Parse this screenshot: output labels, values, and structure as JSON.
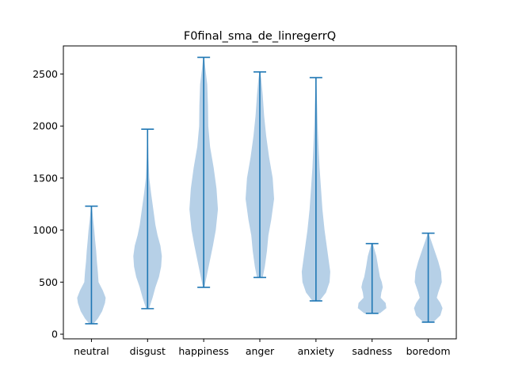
{
  "chart_data": {
    "type": "violin",
    "title": "F0final_sma_de_linregerrQ",
    "xlabel": "",
    "ylabel": "",
    "categories": [
      "neutral",
      "disgust",
      "happiness",
      "anger",
      "anxiety",
      "sadness",
      "boredom"
    ],
    "ylim": [
      -45,
      2770
    ],
    "yticks": [
      0,
      500,
      1000,
      1500,
      2000,
      2500
    ],
    "ytick_labels": [
      "0",
      "500",
      "1000",
      "1500",
      "2000",
      "2500"
    ],
    "grid": false,
    "colors": {
      "body": "#a9c8e3",
      "line": "#1f77b4"
    },
    "series": [
      {
        "category": "neutral",
        "min": 100,
        "max": 1230,
        "profile": [
          [
            100,
            0.15
          ],
          [
            150,
            0.45
          ],
          [
            220,
            0.75
          ],
          [
            300,
            0.95
          ],
          [
            350,
            1.0
          ],
          [
            420,
            0.8
          ],
          [
            500,
            0.5
          ],
          [
            600,
            0.45
          ],
          [
            700,
            0.38
          ],
          [
            800,
            0.33
          ],
          [
            900,
            0.26
          ],
          [
            1000,
            0.2
          ],
          [
            1100,
            0.12
          ],
          [
            1230,
            0.03
          ]
        ]
      },
      {
        "category": "disgust",
        "min": 245,
        "max": 1970,
        "profile": [
          [
            245,
            0.1
          ],
          [
            350,
            0.35
          ],
          [
            450,
            0.55
          ],
          [
            550,
            0.8
          ],
          [
            650,
            0.95
          ],
          [
            750,
            1.0
          ],
          [
            850,
            0.9
          ],
          [
            950,
            0.7
          ],
          [
            1050,
            0.55
          ],
          [
            1200,
            0.4
          ],
          [
            1350,
            0.25
          ],
          [
            1500,
            0.12
          ],
          [
            1700,
            0.06
          ],
          [
            1970,
            0.02
          ]
        ]
      },
      {
        "category": "happiness",
        "min": 450,
        "max": 2660,
        "profile": [
          [
            450,
            0.05
          ],
          [
            650,
            0.35
          ],
          [
            850,
            0.65
          ],
          [
            1000,
            0.85
          ],
          [
            1200,
            1.0
          ],
          [
            1400,
            0.9
          ],
          [
            1600,
            0.7
          ],
          [
            1800,
            0.45
          ],
          [
            2000,
            0.32
          ],
          [
            2200,
            0.3
          ],
          [
            2400,
            0.25
          ],
          [
            2550,
            0.12
          ],
          [
            2660,
            0.03
          ]
        ]
      },
      {
        "category": "anger",
        "min": 545,
        "max": 2520,
        "profile": [
          [
            545,
            0.2
          ],
          [
            650,
            0.35
          ],
          [
            800,
            0.5
          ],
          [
            950,
            0.6
          ],
          [
            1100,
            0.8
          ],
          [
            1300,
            1.0
          ],
          [
            1500,
            0.9
          ],
          [
            1700,
            0.65
          ],
          [
            1900,
            0.45
          ],
          [
            2100,
            0.3
          ],
          [
            2300,
            0.2
          ],
          [
            2450,
            0.1
          ],
          [
            2520,
            0.03
          ]
        ]
      },
      {
        "category": "anxiety",
        "min": 320,
        "max": 2465,
        "profile": [
          [
            320,
            0.25
          ],
          [
            400,
            0.7
          ],
          [
            500,
            0.95
          ],
          [
            600,
            1.0
          ],
          [
            700,
            0.9
          ],
          [
            850,
            0.75
          ],
          [
            1000,
            0.6
          ],
          [
            1200,
            0.45
          ],
          [
            1400,
            0.35
          ],
          [
            1600,
            0.25
          ],
          [
            1800,
            0.18
          ],
          [
            2000,
            0.12
          ],
          [
            2200,
            0.08
          ],
          [
            2465,
            0.02
          ]
        ]
      },
      {
        "category": "sadness",
        "min": 200,
        "max": 870,
        "profile": [
          [
            200,
            0.55
          ],
          [
            250,
            1.0
          ],
          [
            300,
            0.95
          ],
          [
            350,
            0.6
          ],
          [
            400,
            0.65
          ],
          [
            450,
            0.75
          ],
          [
            500,
            0.68
          ],
          [
            550,
            0.55
          ],
          [
            650,
            0.42
          ],
          [
            750,
            0.3
          ],
          [
            870,
            0.05
          ]
        ]
      },
      {
        "category": "boredom",
        "min": 115,
        "max": 970,
        "profile": [
          [
            115,
            0.35
          ],
          [
            180,
            0.85
          ],
          [
            250,
            1.0
          ],
          [
            300,
            0.85
          ],
          [
            350,
            0.6
          ],
          [
            400,
            0.7
          ],
          [
            500,
            0.95
          ],
          [
            600,
            0.9
          ],
          [
            700,
            0.7
          ],
          [
            800,
            0.45
          ],
          [
            900,
            0.2
          ],
          [
            970,
            0.03
          ]
        ]
      }
    ]
  }
}
